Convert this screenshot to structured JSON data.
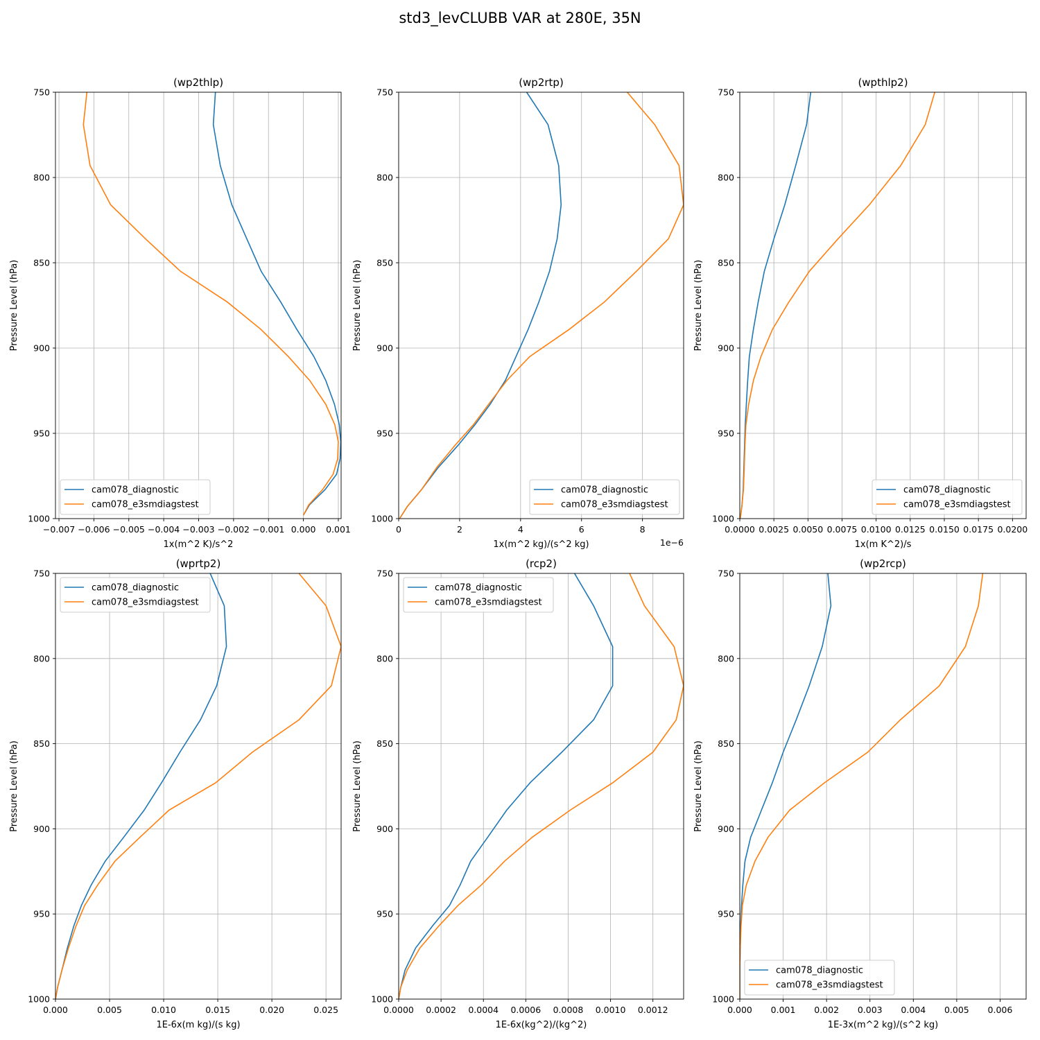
{
  "title": "std3_levCLUBB VAR at 280E, 35N",
  "colors": {
    "diagnostic": "#1f77b4",
    "e3sm": "#ff7f0e",
    "grid": "#b0b0b0"
  },
  "chart_data": [
    {
      "type": "line",
      "title": "(wp2thlp)",
      "xlabel": "1x(m^2 K)/s^2",
      "ylabel": "Pressure Level (hPa)",
      "xlim": [
        -0.0071,
        0.00108
      ],
      "ylim": [
        1000,
        750
      ],
      "y_inverted": true,
      "grid": true,
      "legend": "lower-left",
      "xticks": [
        -0.007,
        -0.006,
        -0.005,
        -0.004,
        -0.003,
        -0.002,
        -0.001,
        0.0,
        0.001
      ],
      "xtick_labels": [
        "−0.007",
        "−0.006",
        "−0.005",
        "−0.004",
        "−0.003",
        "−0.002",
        "−0.001",
        "0.000",
        "0.001"
      ],
      "x_offset_label": "",
      "yticks": [
        750,
        800,
        850,
        900,
        950,
        1000
      ],
      "series": [
        {
          "name": "cam078_diagnostic",
          "color": "#1f77b4",
          "x": [
            -0.00252,
            -0.00258,
            -0.00238,
            -0.00205,
            -0.00162,
            -0.00121,
            -0.00065,
            -0.00019,
            0.0003,
            0.00064,
            0.00089,
            0.00103,
            0.00107,
            0.00105,
            0.00095,
            0.00062,
            0.00017,
            0.0
          ],
          "y": [
            750,
            769,
            793,
            816,
            836,
            855,
            873,
            889,
            905,
            919,
            933,
            945,
            955,
            965,
            974,
            983,
            992,
            998
          ]
        },
        {
          "name": "cam078_e3smdiagstest",
          "color": "#ff7f0e",
          "x": [
            -0.0062,
            -0.0063,
            -0.00611,
            -0.00552,
            -0.00452,
            -0.00352,
            -0.00218,
            -0.00122,
            -0.00043,
            0.00018,
            0.00064,
            0.0009,
            0.001,
            0.00098,
            0.00085,
            0.00055,
            0.00015,
            0.0
          ],
          "y": [
            750,
            769,
            793,
            816,
            836,
            855,
            873,
            889,
            905,
            919,
            933,
            945,
            955,
            965,
            974,
            983,
            992,
            998
          ]
        }
      ]
    },
    {
      "type": "line",
      "title": "(wp2rtp)",
      "xlabel": "1x(m^2 kg)/(s^2 kg)",
      "ylabel": "Pressure Level (hPa)",
      "xlim": [
        0,
        9.35e-06
      ],
      "ylim": [
        1000,
        750
      ],
      "y_inverted": true,
      "grid": true,
      "legend": "lower-right",
      "xticks": [
        0,
        2e-06,
        4e-06,
        6e-06,
        8e-06
      ],
      "xtick_labels": [
        "0",
        "2",
        "4",
        "6",
        "8"
      ],
      "x_offset_label": "1e−6",
      "yticks": [
        750,
        800,
        850,
        900,
        950,
        1000
      ],
      "series": [
        {
          "name": "cam078_diagnostic",
          "color": "#1f77b4",
          "x": [
            4.2e-06,
            4.9e-06,
            5.25e-06,
            5.33e-06,
            5.2e-06,
            4.95e-06,
            4.6e-06,
            4.25e-06,
            3.85e-06,
            3.5e-06,
            3e-06,
            2.5e-06,
            1.95e-06,
            1.3e-06,
            7.5e-07,
            2.8e-07,
            3e-08
          ],
          "y": [
            750,
            769,
            793,
            816,
            836,
            855,
            873,
            889,
            905,
            919,
            933,
            945,
            957,
            970,
            983,
            993,
            1000
          ]
        },
        {
          "name": "cam078_e3smdiagstest",
          "color": "#ff7f0e",
          "x": [
            7.5e-06,
            8.4e-06,
            9.2e-06,
            9.35e-06,
            8.85e-06,
            7.8e-06,
            6.75e-06,
            5.6e-06,
            4.3e-06,
            3.55e-06,
            2.95e-06,
            2.45e-06,
            1.85e-06,
            1.25e-06,
            7.5e-07,
            2.8e-07,
            3e-08
          ],
          "y": [
            750,
            769,
            793,
            816,
            836,
            855,
            873,
            889,
            905,
            919,
            933,
            945,
            957,
            970,
            983,
            993,
            1000
          ]
        }
      ]
    },
    {
      "type": "line",
      "title": "(wpthlp2)",
      "xlabel": "1x(m K^2)/s",
      "ylabel": "Pressure Level (hPa)",
      "xlim": [
        0,
        0.021
      ],
      "ylim": [
        1000,
        750
      ],
      "y_inverted": true,
      "grid": true,
      "legend": "lower-right",
      "xticks": [
        0.0,
        0.0025,
        0.005,
        0.0075,
        0.01,
        0.0125,
        0.015,
        0.0175,
        0.02
      ],
      "xtick_labels": [
        "0.0000",
        "0.0025",
        "0.0050",
        "0.0075",
        "0.0100",
        "0.0125",
        "0.0150",
        "0.0175",
        "0.0200"
      ],
      "x_offset_label": "",
      "yticks": [
        750,
        800,
        850,
        900,
        950,
        1000
      ],
      "series": [
        {
          "name": "cam078_diagnostic",
          "color": "#1f77b4",
          "x": [
            0.0052,
            0.0049,
            0.0041,
            0.0033,
            0.0025,
            0.0018,
            0.00135,
            0.001,
            0.0007,
            0.00058,
            0.00048,
            0.0004,
            0.00035,
            0.0003,
            0.00025,
            0.00015,
            3e-05
          ],
          "y": [
            750,
            769,
            793,
            816,
            836,
            855,
            873,
            889,
            905,
            919,
            933,
            945,
            957,
            970,
            983,
            993,
            1000
          ]
        },
        {
          "name": "cam078_e3smdiagstest",
          "color": "#ff7f0e",
          "x": [
            0.0143,
            0.0136,
            0.0118,
            0.0095,
            0.0072,
            0.0051,
            0.0036,
            0.0024,
            0.00155,
            0.001,
            0.00065,
            0.00045,
            0.00038,
            0.00033,
            0.00027,
            0.00015,
            3e-05
          ],
          "y": [
            750,
            769,
            793,
            816,
            836,
            855,
            873,
            889,
            905,
            919,
            933,
            945,
            957,
            970,
            983,
            993,
            1000
          ]
        }
      ]
    },
    {
      "type": "line",
      "title": "(wprtp2)",
      "xlabel": "1E-6x(m kg)/(s kg)",
      "ylabel": "Pressure Level (hPa)",
      "xlim": [
        0,
        0.0264
      ],
      "ylim": [
        1000,
        750
      ],
      "y_inverted": true,
      "grid": true,
      "legend": "upper-left",
      "xticks": [
        0.0,
        0.005,
        0.01,
        0.015,
        0.02,
        0.025
      ],
      "xtick_labels": [
        "0.000",
        "0.005",
        "0.010",
        "0.015",
        "0.020",
        "0.025"
      ],
      "x_offset_label": "",
      "yticks": [
        750,
        800,
        850,
        900,
        950,
        1000
      ],
      "series": [
        {
          "name": "cam078_diagnostic",
          "color": "#1f77b4",
          "x": [
            0.0143,
            0.0156,
            0.0158,
            0.0149,
            0.0134,
            0.0115,
            0.0098,
            0.0082,
            0.0063,
            0.0046,
            0.0033,
            0.0024,
            0.0017,
            0.0011,
            0.0006,
            0.0002,
            0.0
          ],
          "y": [
            750,
            769,
            793,
            816,
            836,
            855,
            873,
            889,
            905,
            919,
            933,
            945,
            957,
            970,
            983,
            993,
            1000
          ]
        },
        {
          "name": "cam078_e3smdiagstest",
          "color": "#ff7f0e",
          "x": [
            0.0225,
            0.025,
            0.0264,
            0.0255,
            0.0225,
            0.0182,
            0.0148,
            0.0105,
            0.0078,
            0.0055,
            0.0039,
            0.0027,
            0.0019,
            0.0012,
            0.0006,
            0.0002,
            0.0
          ],
          "y": [
            750,
            769,
            793,
            816,
            836,
            855,
            873,
            889,
            905,
            919,
            933,
            945,
            957,
            970,
            983,
            993,
            1000
          ]
        }
      ]
    },
    {
      "type": "line",
      "title": "(rcp2)",
      "xlabel": "1E-6x(kg^2)/(kg^2)",
      "ylabel": "Pressure Level (hPa)",
      "xlim": [
        0,
        0.001345
      ],
      "ylim": [
        1000,
        750
      ],
      "y_inverted": true,
      "grid": true,
      "legend": "upper-left",
      "xticks": [
        0.0,
        0.0002,
        0.0004,
        0.0006,
        0.0008,
        0.001,
        0.0012
      ],
      "xtick_labels": [
        "0.0000",
        "0.0002",
        "0.0004",
        "0.0006",
        "0.0008",
        "0.0010",
        "0.0012"
      ],
      "x_offset_label": "",
      "yticks": [
        750,
        800,
        850,
        900,
        950,
        1000
      ],
      "series": [
        {
          "name": "cam078_diagnostic",
          "color": "#1f77b4",
          "x": [
            0.00083,
            0.00092,
            0.00101,
            0.00101,
            0.00092,
            0.00077,
            0.00062,
            0.00051,
            0.00042,
            0.00034,
            0.00029,
            0.00024,
            0.00016,
            8e-05,
            3e-05,
            1e-05,
            0.0
          ],
          "y": [
            750,
            769,
            793,
            816,
            836,
            855,
            873,
            889,
            905,
            919,
            933,
            945,
            957,
            970,
            983,
            993,
            1000
          ]
        },
        {
          "name": "cam078_e3smdiagstest",
          "color": "#ff7f0e",
          "x": [
            0.00109,
            0.00116,
            0.0013,
            0.001345,
            0.00131,
            0.0012,
            0.00101,
            0.00081,
            0.00063,
            0.0005,
            0.00039,
            0.00028,
            0.00019,
            0.0001,
            4e-05,
            1e-05,
            0.0
          ],
          "y": [
            750,
            769,
            793,
            816,
            836,
            855,
            873,
            889,
            905,
            919,
            933,
            945,
            957,
            970,
            983,
            993,
            1000
          ]
        }
      ]
    },
    {
      "type": "line",
      "title": "(wp2rcp)",
      "xlabel": "1E-3x(m^2 kg)/(s^2 kg)",
      "ylabel": "Pressure Level (hPa)",
      "xlim": [
        0,
        0.0066
      ],
      "ylim": [
        1000,
        750
      ],
      "y_inverted": true,
      "grid": true,
      "legend": "lower-left",
      "xticks": [
        0.0,
        0.001,
        0.002,
        0.003,
        0.004,
        0.005,
        0.006
      ],
      "xtick_labels": [
        "0.000",
        "0.001",
        "0.002",
        "0.003",
        "0.004",
        "0.005",
        "0.006"
      ],
      "x_offset_label": "",
      "yticks": [
        750,
        800,
        850,
        900,
        950,
        1000
      ],
      "series": [
        {
          "name": "cam078_diagnostic",
          "color": "#1f77b4",
          "x": [
            0.00203,
            0.0021,
            0.0019,
            0.0016,
            0.0013,
            0.001,
            0.00075,
            0.0005,
            0.00025,
            0.00012,
            7e-05,
            4e-05,
            2e-05,
            1e-05,
            0.0,
            0.0,
            0.0
          ],
          "y": [
            750,
            769,
            793,
            816,
            836,
            855,
            873,
            889,
            905,
            919,
            933,
            945,
            957,
            970,
            983,
            993,
            1000
          ]
        },
        {
          "name": "cam078_e3smdiagstest",
          "color": "#ff7f0e",
          "x": [
            0.0056,
            0.0055,
            0.0052,
            0.0046,
            0.0037,
            0.00295,
            0.00195,
            0.00115,
            0.00065,
            0.00035,
            0.00015,
            6e-05,
            3e-05,
            1e-05,
            0.0,
            0.0,
            0.0
          ],
          "y": [
            750,
            769,
            793,
            816,
            836,
            855,
            873,
            889,
            905,
            919,
            933,
            945,
            957,
            970,
            983,
            993,
            1000
          ]
        }
      ]
    }
  ]
}
